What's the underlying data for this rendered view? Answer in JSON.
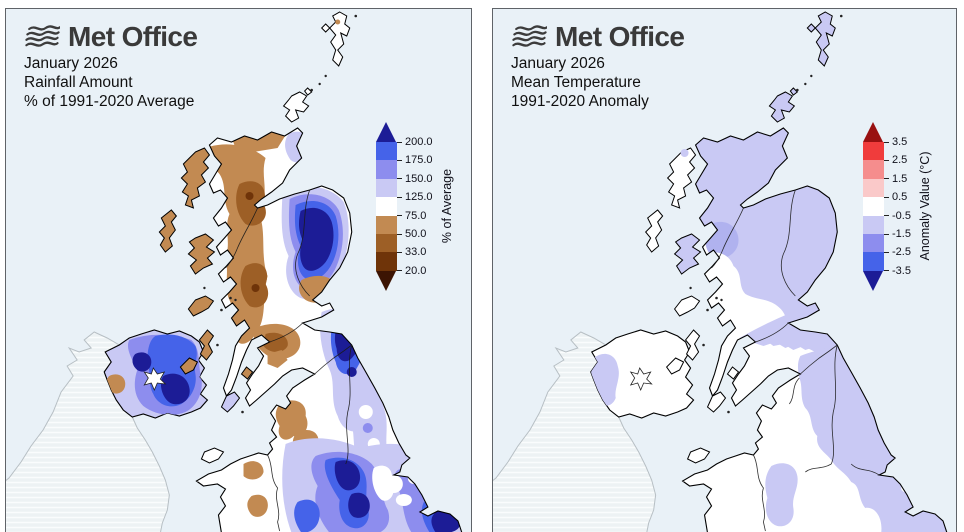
{
  "panels": [
    {
      "logo_text": "Met Office",
      "date_line": "January 2026",
      "title_line": "Rainfall Amount",
      "subtitle_line": "% of 1991-2020 Average",
      "colorbar": {
        "axis_label": "% of Average",
        "tick_labels": [
          "200.0",
          "175.0",
          "150.0",
          "125.0",
          "75.0",
          "50.0",
          "33.0",
          "20.0"
        ],
        "band_colors_top_to_bottom": [
          "#4563e9",
          "#8d8dee",
          "#c9c9f4",
          "#ffffff",
          "#c28a52",
          "#9d5f26",
          "#6f3409"
        ],
        "over_arrow_color": "#1c1c96",
        "under_arrow_color": "#3c1403"
      }
    },
    {
      "logo_text": "Met Office",
      "date_line": "January 2026",
      "title_line": "Mean Temperature",
      "subtitle_line": "1991-2020 Anomaly",
      "colorbar": {
        "axis_label": "Anomaly Value (°C)",
        "tick_labels": [
          "3.5",
          "2.5",
          "1.5",
          "0.5",
          "-0.5",
          "-1.5",
          "-2.5",
          "-3.5"
        ],
        "band_colors_top_to_bottom": [
          "#f03c3c",
          "#f58d8d",
          "#fac9c9",
          "#ffffff",
          "#c9c9f4",
          "#8d8dee",
          "#4563e9"
        ],
        "over_arrow_color": "#991111",
        "under_arrow_color": "#1c1c96"
      }
    }
  ],
  "colors": {
    "panel_background": "#e9f1f7",
    "panel_border": "#5f6368",
    "land": "#ffffff",
    "coastline": "#000000",
    "ireland_outline": "#b7bfc4"
  }
}
